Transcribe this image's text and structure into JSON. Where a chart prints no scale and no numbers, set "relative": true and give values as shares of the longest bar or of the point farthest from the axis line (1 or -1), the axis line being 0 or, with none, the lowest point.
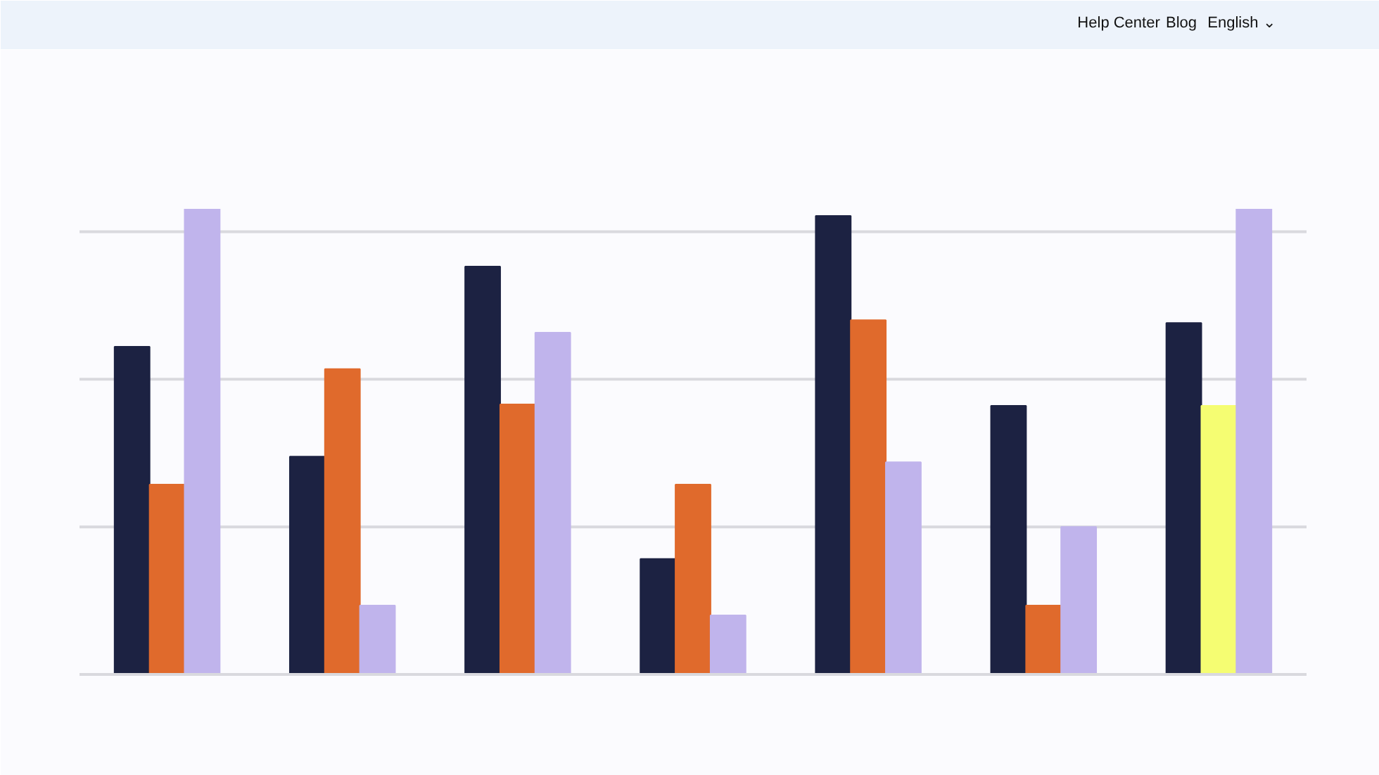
{
  "chart_data": {
    "type": "bar",
    "relative": true,
    "ref_lines": [
      {
        "axis": "y",
        "value": 0.317,
        "color": "#d9d9de"
      },
      {
        "axis": "y",
        "value": 0.634,
        "color": "#d9d9de"
      },
      {
        "axis": "y",
        "value": 0.951,
        "color": "#d9d9de"
      }
    ],
    "categories": [
      null,
      null,
      null,
      null,
      null,
      null,
      null
    ],
    "series": [
      {
        "color": "#1c2242",
        "values": [
          0.704,
          0.468,
          0.876,
          0.248,
          0.985,
          0.577,
          0.755
        ]
      },
      {
        "color": "#e06a2c",
        "colors": [
          "#e06a2c",
          "#e06a2c",
          "#e06a2c",
          "#e06a2c",
          "#e06a2c",
          "#e06a2c",
          "#f5fd72"
        ],
        "values": [
          0.408,
          0.656,
          0.58,
          0.408,
          0.761,
          0.148,
          0.577
        ]
      },
      {
        "color": "#c0b4ec",
        "values": [
          1,
          0.148,
          0.734,
          0.127,
          0.456,
          0.317,
          1
        ]
      }
    ],
    "annotations": [
      "Help Center",
      "Blog",
      "English ⌄"
    ]
  }
}
